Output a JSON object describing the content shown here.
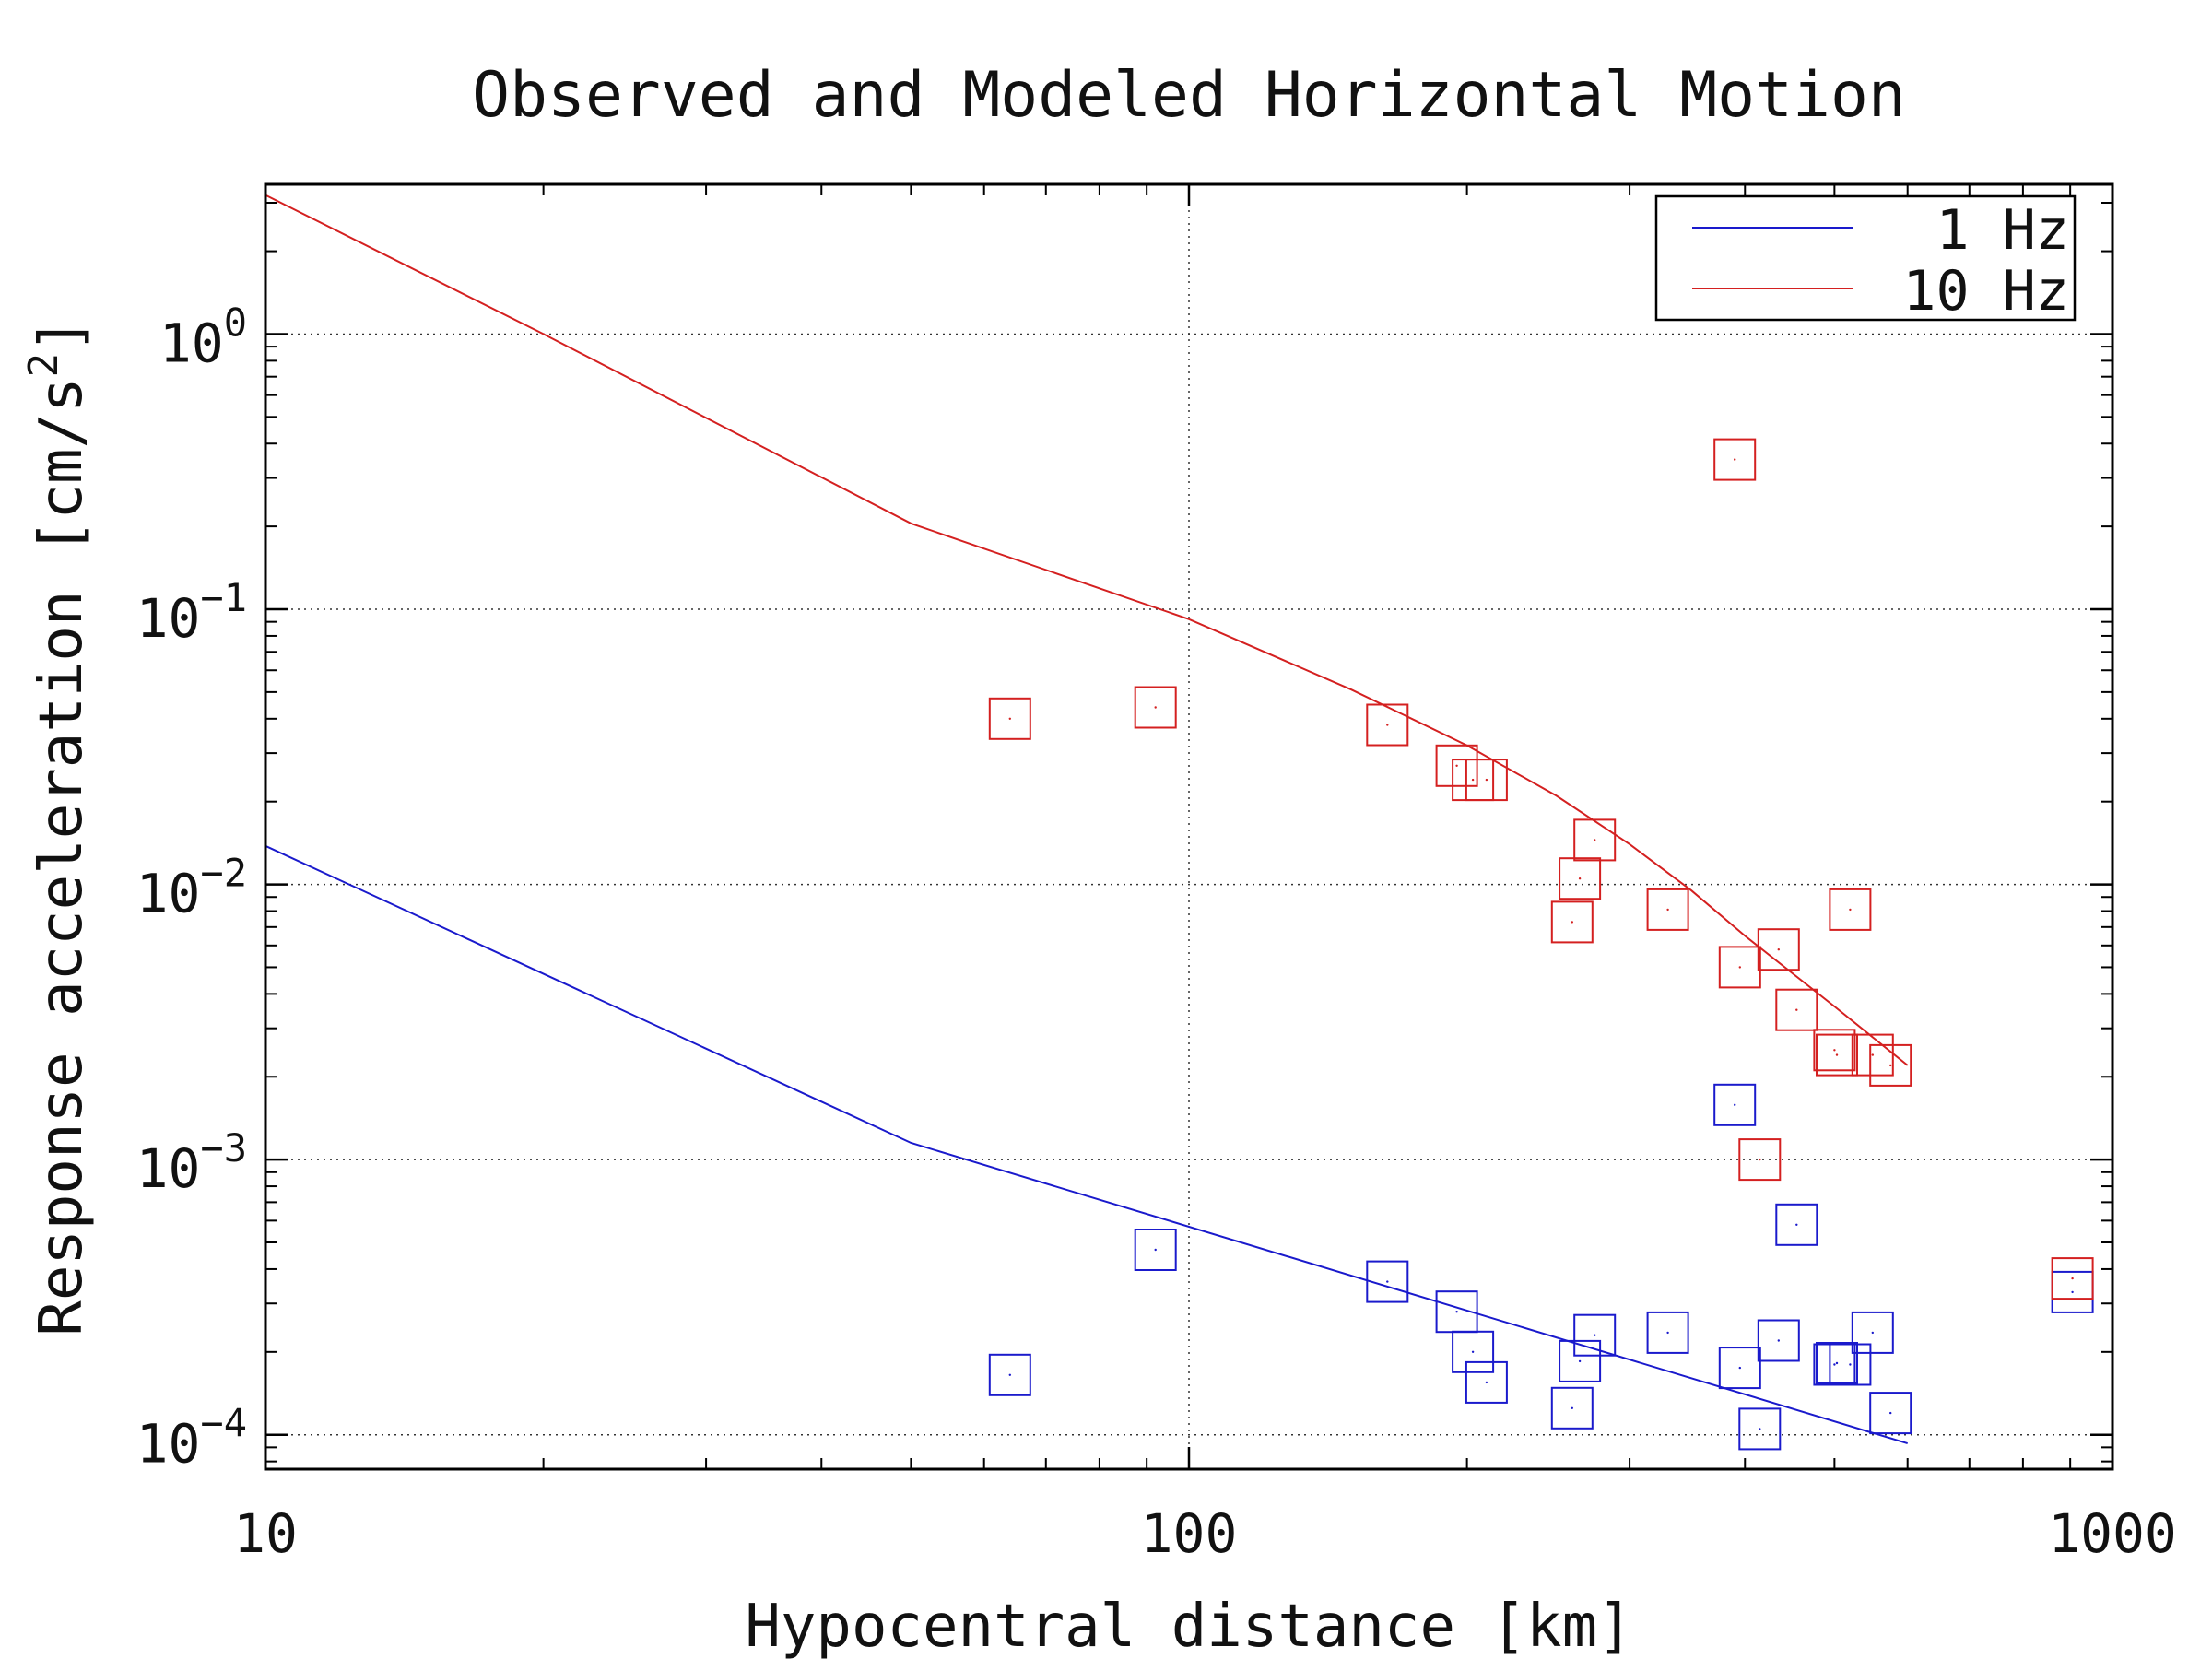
{
  "chart_data": {
    "type": "scatter",
    "title": "Observed and Modeled Horizontal Motion",
    "xlabel": "Hypocentral distance [km]",
    "ylabel": "Response acceleration [cm/s",
    "ylabel_sup": "2",
    "ylabel_close": "]",
    "xscale": "log",
    "yscale": "log",
    "xlim": [
      10,
      1000
    ],
    "ylim": [
      7.5e-05,
      3.5
    ],
    "grid": true,
    "legend_position": "top-right",
    "x_ticks": [
      {
        "value": 10,
        "label": "10"
      },
      {
        "value": 100,
        "label": "100"
      },
      {
        "value": 1000,
        "label": "1000"
      }
    ],
    "y_ticks": [
      {
        "value": 1,
        "base": "10",
        "exp": "0"
      },
      {
        "value": 0.1,
        "base": "10",
        "exp": "−1"
      },
      {
        "value": 0.01,
        "base": "10",
        "exp": "−2"
      },
      {
        "value": 0.001,
        "base": "10",
        "exp": "−3"
      },
      {
        "value": 0.0001,
        "base": "10",
        "exp": "−4"
      }
    ],
    "series": [
      {
        "name": "1 Hz",
        "color": "#1a1acc",
        "model": {
          "x": [
            10,
            50,
            600
          ],
          "y": [
            0.0138,
            0.00115,
            9.3e-05
          ]
        },
        "observed": [
          {
            "x": 64,
            "y": 0.000165
          },
          {
            "x": 92,
            "y": 0.00047
          },
          {
            "x": 164,
            "y": 0.00036
          },
          {
            "x": 195,
            "y": 0.00028
          },
          {
            "x": 203,
            "y": 0.0002
          },
          {
            "x": 210,
            "y": 0.000155
          },
          {
            "x": 260,
            "y": 0.000125
          },
          {
            "x": 265,
            "y": 0.000185
          },
          {
            "x": 275,
            "y": 0.00023
          },
          {
            "x": 330,
            "y": 0.000235
          },
          {
            "x": 390,
            "y": 0.00158
          },
          {
            "x": 395,
            "y": 0.000175
          },
          {
            "x": 415,
            "y": 0.000105
          },
          {
            "x": 435,
            "y": 0.00022
          },
          {
            "x": 455,
            "y": 0.00058
          },
          {
            "x": 500,
            "y": 0.00018
          },
          {
            "x": 503,
            "y": 0.000182
          },
          {
            "x": 520,
            "y": 0.00018
          },
          {
            "x": 550,
            "y": 0.000235
          },
          {
            "x": 575,
            "y": 0.00012
          },
          {
            "x": 905,
            "y": 0.00033
          }
        ]
      },
      {
        "name": "10 Hz",
        "color": "#d42020",
        "model": {
          "x": [
            10,
            20,
            50,
            100,
            150,
            200,
            250,
            300,
            350,
            400,
            500,
            600
          ],
          "y": [
            3.2,
            1.0,
            0.205,
            0.092,
            0.051,
            0.032,
            0.021,
            0.014,
            0.0095,
            0.0065,
            0.0036,
            0.0022
          ]
        },
        "observed": [
          {
            "x": 64,
            "y": 0.04
          },
          {
            "x": 92,
            "y": 0.044
          },
          {
            "x": 164,
            "y": 0.038
          },
          {
            "x": 195,
            "y": 0.027
          },
          {
            "x": 203,
            "y": 0.024
          },
          {
            "x": 210,
            "y": 0.024
          },
          {
            "x": 260,
            "y": 0.0073
          },
          {
            "x": 265,
            "y": 0.0105
          },
          {
            "x": 275,
            "y": 0.0145
          },
          {
            "x": 330,
            "y": 0.0081
          },
          {
            "x": 390,
            "y": 0.35
          },
          {
            "x": 395,
            "y": 0.005
          },
          {
            "x": 415,
            "y": 0.001
          },
          {
            "x": 435,
            "y": 0.0058
          },
          {
            "x": 455,
            "y": 0.0035
          },
          {
            "x": 500,
            "y": 0.0025
          },
          {
            "x": 503,
            "y": 0.0024
          },
          {
            "x": 520,
            "y": 0.0081
          },
          {
            "x": 550,
            "y": 0.0024
          },
          {
            "x": 575,
            "y": 0.0022
          },
          {
            "x": 905,
            "y": 0.00037
          }
        ]
      }
    ]
  }
}
